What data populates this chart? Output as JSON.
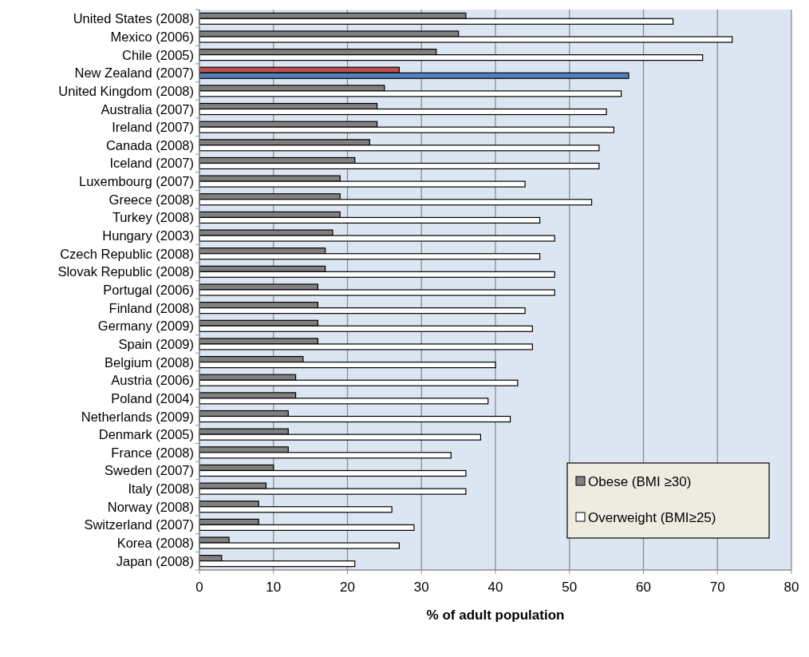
{
  "chart_data": {
    "type": "bar",
    "orientation": "horizontal",
    "xlabel": "% of adult population",
    "categories": [
      "United States (2008)",
      "Mexico (2006)",
      "Chile (2005)",
      "New Zealand (2007)",
      "United Kingdom (2008)",
      "Australia (2007)",
      "Ireland (2007)",
      "Canada (2008)",
      "Iceland (2007)",
      "Luxembourg (2007)",
      "Greece (2008)",
      "Turkey (2008)",
      "Hungary (2003)",
      "Czech Republic (2008)",
      "Slovak Republic (2008)",
      "Portugal (2006)",
      "Finland (2008)",
      "Germany (2009)",
      "Spain (2009)",
      "Belgium (2008)",
      "Austria (2006)",
      "Poland (2004)",
      "Netherlands (2009)",
      "Denmark (2005)",
      "France (2008)",
      "Sweden (2007)",
      "Italy (2008)",
      "Norway (2008)",
      "Switzerland (2007)",
      "Korea (2008)",
      "Japan (2008)"
    ],
    "series": [
      {
        "name": "Obese (BMI ≥30)",
        "color": "#808080",
        "colors": [
          "#808080",
          "#808080",
          "#808080",
          "#c0504d",
          "#808080",
          "#808080",
          "#808080",
          "#808080",
          "#808080",
          "#808080",
          "#808080",
          "#808080",
          "#808080",
          "#808080",
          "#808080",
          "#808080",
          "#808080",
          "#808080",
          "#808080",
          "#808080",
          "#808080",
          "#808080",
          "#808080",
          "#808080",
          "#808080",
          "#808080",
          "#808080",
          "#808080",
          "#808080",
          "#808080",
          "#808080"
        ],
        "values": [
          36,
          35,
          32,
          27,
          25,
          24,
          24,
          23,
          21,
          19,
          19,
          19,
          18,
          17,
          17,
          16,
          16,
          16,
          16,
          14,
          13,
          13,
          12,
          12,
          12,
          10,
          9,
          8,
          8,
          4,
          3
        ]
      },
      {
        "name": "Overweight (BMI≥25)",
        "color": "#ffffff",
        "colors": [
          "#ffffff",
          "#ffffff",
          "#ffffff",
          "#4f81bd",
          "#ffffff",
          "#ffffff",
          "#ffffff",
          "#ffffff",
          "#ffffff",
          "#ffffff",
          "#ffffff",
          "#ffffff",
          "#ffffff",
          "#ffffff",
          "#ffffff",
          "#ffffff",
          "#ffffff",
          "#ffffff",
          "#ffffff",
          "#ffffff",
          "#ffffff",
          "#ffffff",
          "#ffffff",
          "#ffffff",
          "#ffffff",
          "#ffffff",
          "#ffffff",
          "#ffffff",
          "#ffffff",
          "#ffffff",
          "#ffffff"
        ],
        "values": [
          64,
          72,
          68,
          58,
          57,
          55,
          56,
          54,
          54,
          44,
          53,
          46,
          48,
          46,
          48,
          48,
          44,
          45,
          45,
          40,
          43,
          39,
          42,
          38,
          34,
          36,
          36,
          26,
          29,
          27,
          21
        ]
      }
    ],
    "xlim": [
      0,
      80
    ],
    "xticks": [
      0,
      10,
      20,
      30,
      40,
      50,
      60,
      70,
      80
    ],
    "grid": "x",
    "legend": "bottom right"
  }
}
